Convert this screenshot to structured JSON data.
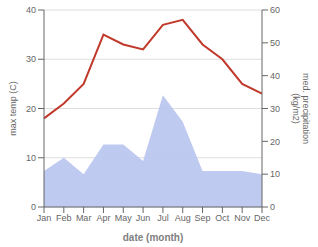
{
  "chart_data": {
    "type": "line",
    "categories": [
      "Jan",
      "Feb",
      "Mar",
      "Apr",
      "May",
      "Jun",
      "Jul",
      "Aug",
      "Sep",
      "Oct",
      "Nov",
      "Dec"
    ],
    "series": [
      {
        "type": "area",
        "color": "#b8c4ee",
        "axis": "y2",
        "values": [
          11,
          15,
          10,
          19,
          19,
          14,
          34,
          26,
          11,
          11,
          11,
          10
        ]
      },
      {
        "type": "line",
        "color": "#c0392b",
        "axis": "y",
        "values": [
          18,
          21,
          25,
          35,
          33,
          32,
          37,
          38,
          33,
          30,
          25,
          23
        ]
      }
    ],
    "xlabel": "date (month)",
    "ylabel": "max temp (C)",
    "y2label": "med. precipitation\n(kg/m2)",
    "ylim": [
      0,
      40
    ],
    "yticks": [
      0,
      10,
      20,
      30,
      40
    ],
    "y2lim": [
      0,
      60
    ],
    "y2ticks": [
      0,
      10,
      20,
      30,
      40,
      50,
      60
    ],
    "grid": true
  }
}
